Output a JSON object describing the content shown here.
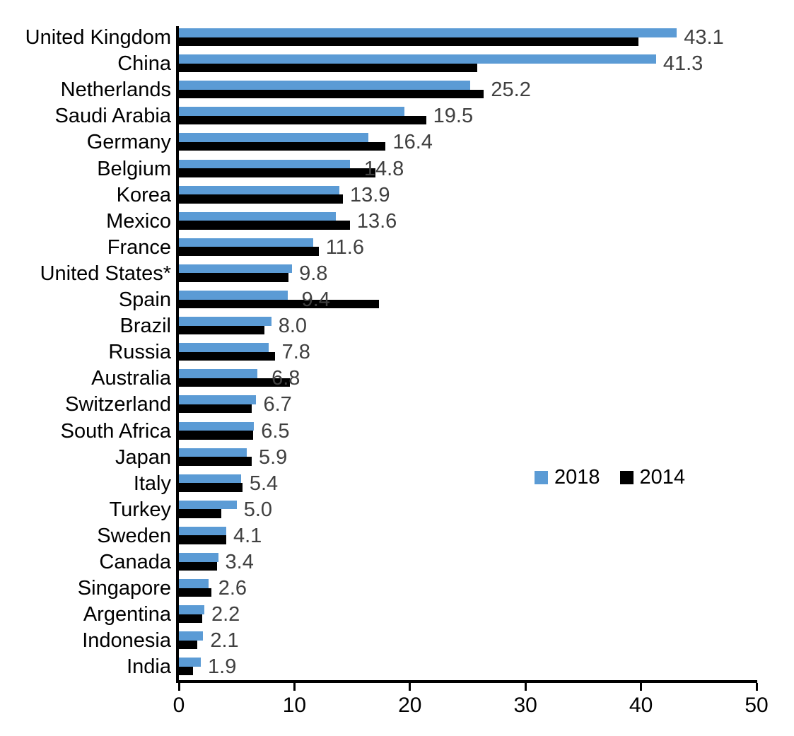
{
  "chart_data": {
    "type": "bar",
    "orientation": "horizontal",
    "title": "",
    "xlabel": "",
    "ylabel": "",
    "xlim": [
      0,
      50
    ],
    "x_ticks": [
      "0",
      "10",
      "20",
      "30",
      "40",
      "50"
    ],
    "grid": false,
    "legend_position": "middle-right",
    "categories": [
      "United Kingdom",
      "China",
      "Netherlands",
      "Saudi Arabia",
      "Germany",
      "Belgium",
      "Korea",
      "Mexico",
      "France",
      "United States*",
      "Spain",
      "Brazil",
      "Russia",
      "Australia",
      "Switzerland",
      "South Africa",
      "Japan",
      "Italy",
      "Turkey",
      "Sweden",
      "Canada",
      "Singapore",
      "Argentina",
      "Indonesia",
      "India"
    ],
    "series": [
      {
        "name": "2018",
        "color": "#5B9BD5",
        "values": [
          43.1,
          41.3,
          25.2,
          19.5,
          16.4,
          14.8,
          13.9,
          13.6,
          11.6,
          9.8,
          9.4,
          8.0,
          7.8,
          6.8,
          6.7,
          6.5,
          5.9,
          5.4,
          5.0,
          4.1,
          3.4,
          2.6,
          2.2,
          2.1,
          1.9
        ]
      },
      {
        "name": "2014",
        "color": "#000000",
        "values": [
          39.8,
          25.8,
          26.4,
          21.4,
          17.9,
          17.0,
          14.2,
          14.8,
          12.1,
          9.5,
          17.3,
          7.4,
          8.3,
          9.6,
          6.3,
          6.4,
          6.3,
          5.5,
          3.7,
          4.1,
          3.3,
          2.8,
          2.0,
          1.6,
          1.2
        ]
      }
    ],
    "data_labels": [
      "43.1",
      "41.3",
      "25.2",
      "19.5",
      "16.4",
      "14.8",
      "13.9",
      "13.6",
      "11.6",
      "9.8",
      "9.4",
      "8.0",
      "7.8",
      "6.8",
      "6.7",
      "6.5",
      "5.9",
      "5.4",
      "5.0",
      "4.1",
      "3.4",
      "2.6",
      "2.2",
      "2.1",
      "1.9"
    ],
    "data_label_series": "2018",
    "data_label_color": "#404040",
    "axis_color": "#000000"
  },
  "legend": {
    "label_2018": "2018",
    "label_2014": "2014"
  }
}
